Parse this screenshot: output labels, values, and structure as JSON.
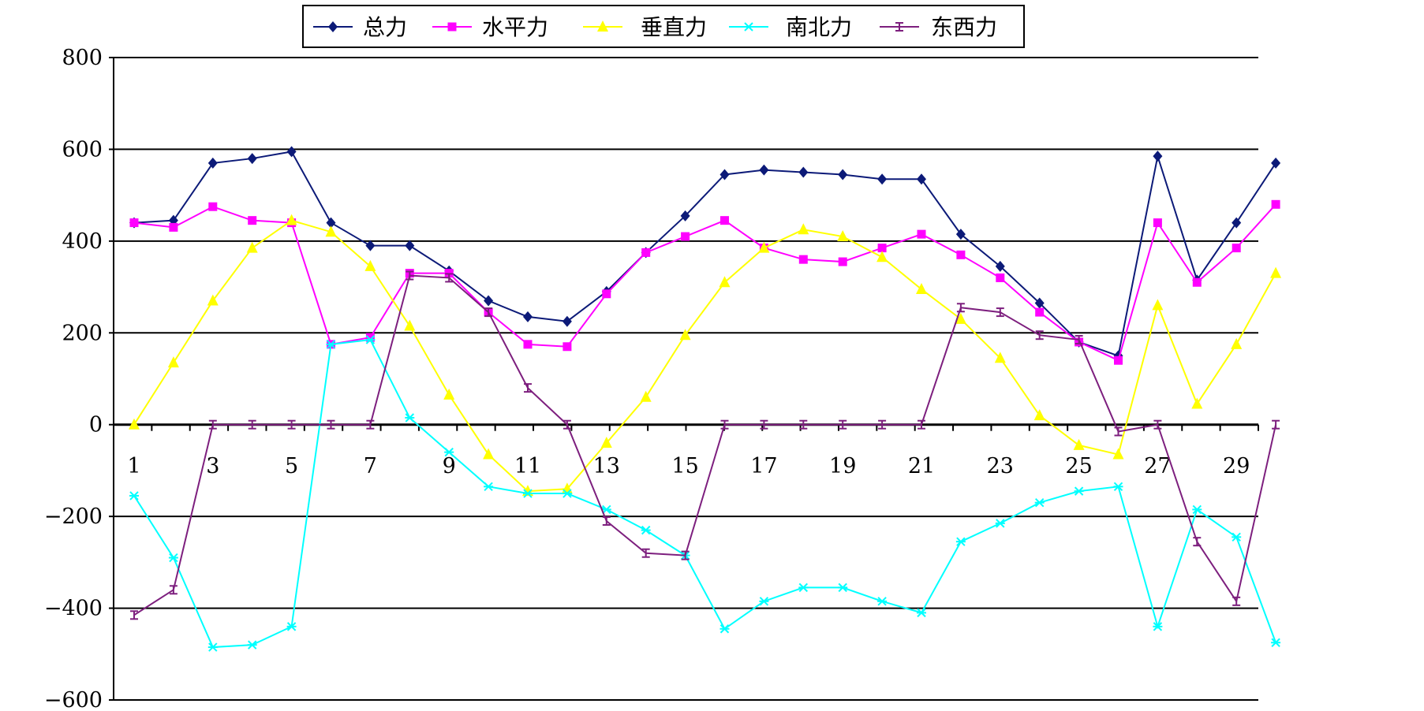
{
  "chart_data": {
    "type": "line",
    "x": [
      1,
      2,
      3,
      4,
      5,
      6,
      7,
      8,
      9,
      10,
      11,
      12,
      13,
      14,
      15,
      16,
      17,
      18,
      19,
      20,
      21,
      22,
      23,
      24,
      25,
      26,
      27,
      28,
      29,
      30
    ],
    "xticks": [
      "1",
      "3",
      "5",
      "7",
      "9",
      "11",
      "13",
      "15",
      "17",
      "19",
      "21",
      "23",
      "25",
      "27",
      "29"
    ],
    "ylim": [
      -600,
      800
    ],
    "yticks": [
      800,
      600,
      400,
      200,
      0,
      -200,
      -400,
      -600
    ],
    "yticks_text": [
      "800",
      "600",
      "400",
      "200",
      "0",
      "−200",
      "−400",
      "−600"
    ],
    "grid": true,
    "legend": "top",
    "series": [
      {
        "name": "总力",
        "color": "#0c1a78",
        "marker": "diamond",
        "values": [
          440,
          445,
          570,
          580,
          595,
          440,
          390,
          390,
          335,
          270,
          235,
          225,
          290,
          375,
          455,
          545,
          555,
          550,
          545,
          535,
          535,
          415,
          345,
          265,
          180,
          150,
          585,
          315,
          440,
          570
        ]
      },
      {
        "name": "水平力",
        "color": "#ff00ff",
        "marker": "square",
        "values": [
          440,
          430,
          475,
          445,
          440,
          175,
          190,
          330,
          330,
          245,
          175,
          170,
          285,
          375,
          410,
          445,
          385,
          360,
          355,
          385,
          415,
          370,
          320,
          245,
          180,
          140,
          440,
          310,
          385,
          480
        ]
      },
      {
        "name": "垂直力",
        "color": "#ffff00",
        "marker": "triangle",
        "values": [
          0,
          135,
          270,
          385,
          445,
          420,
          345,
          215,
          65,
          -65,
          -145,
          -140,
          -40,
          60,
          195,
          310,
          385,
          425,
          410,
          365,
          295,
          230,
          145,
          20,
          -45,
          -65,
          260,
          45,
          175,
          330
        ]
      },
      {
        "name": "南北力",
        "color": "#00ffff",
        "marker": "star",
        "values": [
          -155,
          -290,
          -485,
          -480,
          -440,
          175,
          185,
          15,
          -60,
          -135,
          -150,
          -150,
          -185,
          -230,
          -285,
          -445,
          -385,
          -355,
          -355,
          -385,
          -410,
          -255,
          -215,
          -170,
          -145,
          -135,
          -440,
          -185,
          -245,
          -475
        ]
      },
      {
        "name": "东西力",
        "color": "#7d1f7e",
        "marker": "bar",
        "values": [
          -415,
          -360,
          0,
          0,
          0,
          0,
          0,
          325,
          320,
          245,
          80,
          0,
          -210,
          -280,
          -285,
          0,
          0,
          0,
          0,
          0,
          0,
          255,
          245,
          195,
          185,
          -15,
          0,
          -255,
          -385,
          0
        ]
      }
    ]
  }
}
